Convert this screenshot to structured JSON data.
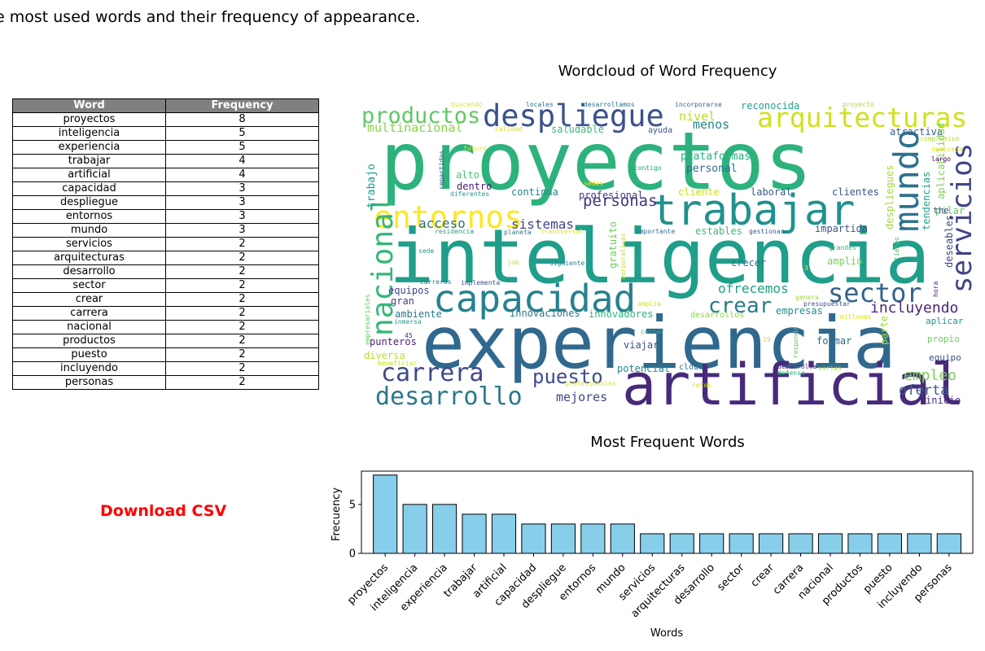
{
  "page": {
    "headline": "e most used words and their frequency of appearance.",
    "download_label": "Download CSV"
  },
  "table": {
    "headers": [
      "Word",
      "Frequency"
    ],
    "rows": [
      [
        "proyectos",
        "8"
      ],
      [
        "inteligencia",
        "5"
      ],
      [
        "experiencia",
        "5"
      ],
      [
        "trabajar",
        "4"
      ],
      [
        "artificial",
        "4"
      ],
      [
        "capacidad",
        "3"
      ],
      [
        "despliegue",
        "3"
      ],
      [
        "entornos",
        "3"
      ],
      [
        "mundo",
        "3"
      ],
      [
        "servicios",
        "2"
      ],
      [
        "arquitecturas",
        "2"
      ],
      [
        "desarrollo",
        "2"
      ],
      [
        "sector",
        "2"
      ],
      [
        "crear",
        "2"
      ],
      [
        "carrera",
        "2"
      ],
      [
        "nacional",
        "2"
      ],
      [
        "productos",
        "2"
      ],
      [
        "puesto",
        "2"
      ],
      [
        "incluyendo",
        "2"
      ],
      [
        "personas",
        "2"
      ]
    ]
  },
  "chart_data": [
    {
      "type": "wordcloud",
      "title": "Wordcloud of Word Frequency",
      "words": [
        {
          "text": "proyectos",
          "color": "#2db27d"
        },
        {
          "text": "inteligencia",
          "color": "#1f9e89"
        },
        {
          "text": "experiencia",
          "color": "#31688e"
        },
        {
          "text": "artificial",
          "color": "#472a7a"
        },
        {
          "text": "trabajar",
          "color": "#21918c"
        },
        {
          "text": "capacidad",
          "color": "#26828e"
        },
        {
          "text": "despliegue",
          "color": "#3b528b"
        },
        {
          "text": "entornos",
          "color": "#fde725"
        },
        {
          "text": "arquitecturas",
          "color": "#d0e11c"
        },
        {
          "text": "productos",
          "color": "#5ec962"
        },
        {
          "text": "mundo",
          "color": "#2c728e"
        },
        {
          "text": "servicios",
          "color": "#414487"
        },
        {
          "text": "sector",
          "color": "#33638d"
        },
        {
          "text": "nacional",
          "color": "#35b779"
        },
        {
          "text": "carrera",
          "color": "#3e4a89"
        },
        {
          "text": "desarrollo",
          "color": "#2a788e"
        },
        {
          "text": "puesto",
          "color": "#3e4c8a"
        },
        {
          "text": "crear",
          "color": "#287c8e"
        },
        {
          "text": "personas",
          "color": "#46337f"
        },
        {
          "text": "incluyendo",
          "color": "#482878"
        },
        {
          "text": "ofrecemos",
          "color": "#1fa187"
        },
        {
          "text": "empleo",
          "color": "#7ad151"
        },
        {
          "text": "oferta",
          "color": "#375a8c"
        },
        {
          "text": "mejores",
          "color": "#3f4788"
        },
        {
          "text": "acceso",
          "color": "#2d708e"
        },
        {
          "text": "sistemas",
          "color": "#404588"
        },
        {
          "text": "multinacional",
          "color": "#86d549"
        },
        {
          "text": "nivel",
          "color": "#b5de2b"
        },
        {
          "text": "menos",
          "color": "#25858e"
        },
        {
          "text": "saludable",
          "color": "#3bbb75"
        },
        {
          "text": "reconocida",
          "color": "#20a386"
        },
        {
          "text": "atractiva",
          "color": "#355f8d"
        },
        {
          "text": "plataformas",
          "color": "#29af7f"
        },
        {
          "text": "personal",
          "color": "#2f6c8e"
        },
        {
          "text": "trabajo",
          "color": "#1e9c89"
        },
        {
          "text": "despliegues",
          "color": "#a2da37"
        },
        {
          "text": "tendencias",
          "color": "#1fa287"
        },
        {
          "text": "aplicabilidad",
          "color": "#7fd34e"
        },
        {
          "text": "pilar",
          "color": "#5cc863"
        },
        {
          "text": "clientes",
          "color": "#3a548c"
        },
        {
          "text": "laboral",
          "color": "#38598c"
        },
        {
          "text": "cliente",
          "color": "#c8e020"
        },
        {
          "text": "continua",
          "color": "#25848e"
        },
        {
          "text": "dentro",
          "color": "#481f70"
        },
        {
          "text": "alto",
          "color": "#4ac16d"
        },
        {
          "text": "profesional",
          "color": "#453781"
        },
        {
          "text": "gratuito",
          "color": "#6ccd5a"
        },
        {
          "text": "estables",
          "color": "#3dbc74"
        },
        {
          "text": "impartida",
          "color": "#3b528b"
        },
        {
          "text": "deseables",
          "color": "#3f4889"
        },
        {
          "text": "amplio",
          "color": "#76d054"
        },
        {
          "text": "crecer",
          "color": "#2a768e"
        },
        {
          "text": "equipos",
          "color": "#3e4989"
        },
        {
          "text": "gran",
          "color": "#433e85"
        },
        {
          "text": "ambiente",
          "color": "#2a788e"
        },
        {
          "text": "innovaciones",
          "color": "#2b748e"
        },
        {
          "text": "innovadores",
          "color": "#2fb47c"
        },
        {
          "text": "empresas",
          "color": "#228c8d"
        },
        {
          "text": "desarrollos",
          "color": "#8ed645"
        },
        {
          "text": "parte",
          "color": "#9bd93c"
        },
        {
          "text": "aplicar",
          "color": "#1f948c"
        },
        {
          "text": "propio",
          "color": "#6ccd5a"
        },
        {
          "text": "equipo",
          "color": "#3d4d8a"
        },
        {
          "text": "punteros",
          "color": "#482475"
        },
        {
          "text": "diversa",
          "color": "#bddf26"
        },
        {
          "text": "viajar",
          "color": "#3b518b"
        },
        {
          "text": "formar",
          "color": "#31668e"
        },
        {
          "text": "potencial",
          "color": "#23888e"
        },
        {
          "text": "cloud",
          "color": "#2c718e"
        },
        {
          "text": "inicio",
          "color": "#46327e"
        },
        {
          "text": "the",
          "color": "#3e4a89"
        },
        {
          "text": "largo",
          "color": "#440154"
        },
        {
          "text": "ayuda",
          "color": "#3b528b"
        },
        {
          "text": "buscando",
          "color": "#dde318"
        },
        {
          "text": "locales",
          "color": "#2c738e"
        },
        {
          "text": "desarrollamos",
          "color": "#2e6d8e"
        },
        {
          "text": "incorporarse",
          "color": "#31688e"
        },
        {
          "text": "proyecto",
          "color": "#a8db34"
        },
        {
          "text": "calidad",
          "color": "#dae319"
        },
        {
          "text": "compromiso",
          "color": "#b2dd2d"
        },
        {
          "text": "dedicada",
          "color": "#e2e418"
        },
        {
          "text": "futuro",
          "color": "#dde318"
        },
        {
          "text": "repartidas",
          "color": "#3d4d8a"
        },
        {
          "text": "contigo",
          "color": "#1fa088"
        },
        {
          "text": "sedes",
          "color": "#e7e419"
        },
        {
          "text": "diferentes",
          "color": "#1f958b"
        },
        {
          "text": "residencia",
          "color": "#1f988b"
        },
        {
          "text": "planeta",
          "color": "#2a768e"
        },
        {
          "text": "transversal",
          "color": "#e5e419"
        },
        {
          "text": "importante",
          "color": "#2e6f8e"
        },
        {
          "text": "gestionar",
          "color": "#38598c"
        },
        {
          "text": "grandes",
          "color": "#32b67a"
        },
        {
          "text": "tiempo",
          "color": "#4ec36b"
        },
        {
          "text": "hora",
          "color": "#481b6d"
        },
        {
          "text": "job",
          "color": "#c0df25"
        },
        {
          "text": "siguiente",
          "color": "#27808e"
        },
        {
          "text": "3",
          "color": "#fde725"
        },
        {
          "text": "corporativas",
          "color": "#c2df23"
        },
        {
          "text": "sede",
          "color": "#1f9a8a"
        },
        {
          "text": "carreras",
          "color": "#29798e"
        },
        {
          "text": "implementa",
          "color": "#39568c"
        },
        {
          "text": "empresariales",
          "color": "#5cc863"
        },
        {
          "text": "genera",
          "color": "#9fda3a"
        },
        {
          "text": "presupuestar",
          "color": "#3b528b"
        },
        {
          "text": "millones",
          "color": "#d8e219"
        },
        {
          "text": "amplia",
          "color": "#d2e21b"
        },
        {
          "text": "inmersa",
          "color": "#1fa187"
        },
        {
          "text": "contar",
          "color": "#28ae80"
        },
        {
          "text": "45",
          "color": "#482878"
        },
        {
          "text": "19",
          "color": "#d8e219"
        },
        {
          "text": "responda",
          "color": "#5ec962"
        },
        {
          "text": "beneficiar",
          "color": "#c5e021"
        },
        {
          "text": "desarrolla",
          "color": "#472c7a"
        },
        {
          "text": "defensa",
          "color": "#29af7f"
        },
        {
          "text": "varias",
          "color": "#b0dd2f"
        },
        {
          "text": "retos",
          "color": "#dde318"
        },
        {
          "text": "profesionales",
          "color": "#e5e419"
        }
      ]
    },
    {
      "type": "bar",
      "title": "Most Frequent Words",
      "xlabel": "Words",
      "ylabel": "Frecuency",
      "categories": [
        "proyectos",
        "inteligencia",
        "experiencia",
        "trabajar",
        "artificial",
        "capacidad",
        "despliegue",
        "entornos",
        "mundo",
        "servicios",
        "arquitecturas",
        "desarrollo",
        "sector",
        "crear",
        "carrera",
        "nacional",
        "productos",
        "puesto",
        "incluyendo",
        "personas"
      ],
      "values": [
        8,
        5,
        5,
        4,
        4,
        3,
        3,
        3,
        3,
        2,
        2,
        2,
        2,
        2,
        2,
        2,
        2,
        2,
        2,
        2
      ],
      "ylim": [
        0,
        8.4
      ],
      "yticks": [
        0,
        5
      ],
      "bar_color": "#87ceeb",
      "edge_color": "#000000"
    }
  ]
}
